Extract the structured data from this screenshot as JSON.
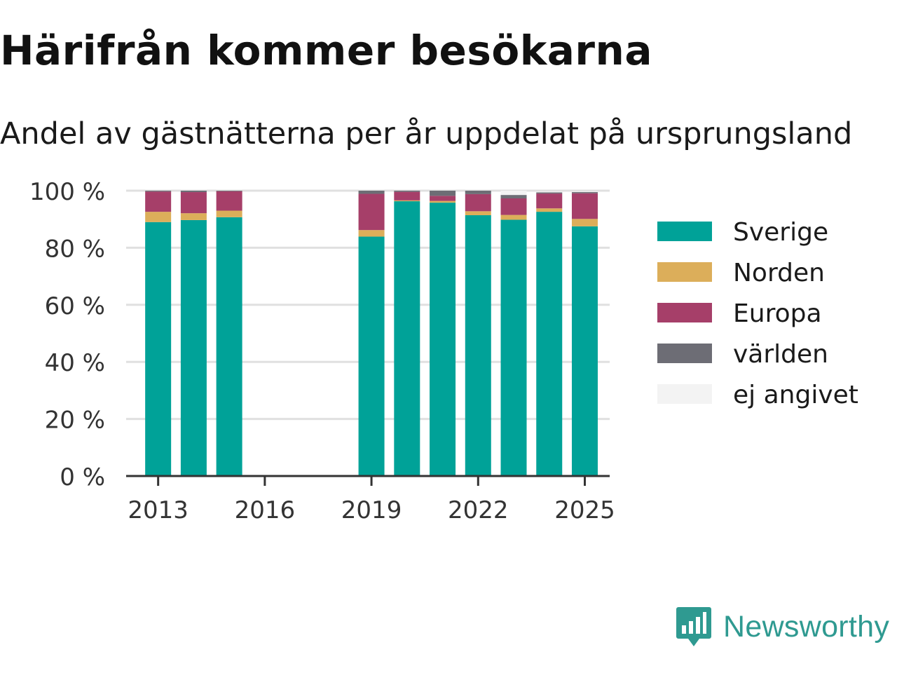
{
  "header": {
    "title": "Härifrån kommer besökarna",
    "subtitle": "Andel av gästnätterna per år uppdelat på ursprungsland"
  },
  "brand": {
    "name": "Newsworthy",
    "icon": "newsworthy-logo-icon",
    "color": "#2f9a91"
  },
  "chart_data": {
    "type": "bar",
    "stacked": true,
    "title": "",
    "xlabel": "",
    "ylabel": "",
    "x": [
      2013,
      2014,
      2015,
      2019,
      2020,
      2021,
      2022,
      2023,
      2024,
      2025
    ],
    "xlim": [
      2012.1,
      2025.7
    ],
    "xticks": [
      "2013",
      "2016",
      "2019",
      "2022",
      "2025"
    ],
    "xtick_values": [
      2013,
      2016,
      2019,
      2022,
      2025
    ],
    "ylim": [
      0,
      100
    ],
    "yticks": [
      "0 %",
      "20 %",
      "40 %",
      "60 %",
      "80 %",
      "100 %"
    ],
    "ytick_values": [
      0,
      20,
      40,
      60,
      80,
      100
    ],
    "grid": true,
    "legend_position": "right",
    "series": [
      {
        "name": "Sverige",
        "color": "#00a298",
        "values": [
          89.0,
          89.7,
          90.7,
          83.9,
          96.3,
          95.8,
          91.4,
          89.8,
          92.6,
          87.5
        ]
      },
      {
        "name": "Norden",
        "color": "#dcae5a",
        "values": [
          3.6,
          2.4,
          2.3,
          2.3,
          0.3,
          0.6,
          1.4,
          1.7,
          1.2,
          2.6
        ]
      },
      {
        "name": "Europa",
        "color": "#a63f69",
        "values": [
          7.1,
          7.4,
          6.8,
          12.7,
          3.0,
          1.8,
          6.0,
          5.8,
          5.2,
          9.0
        ]
      },
      {
        "name": "världen",
        "color": "#6d6d75",
        "values": [
          0.3,
          0.5,
          0.2,
          1.1,
          0.4,
          1.8,
          1.2,
          1.2,
          0.4,
          0.4
        ]
      },
      {
        "name": "ej angivet",
        "color": "#f3f3f3",
        "values": [
          0.0,
          0.0,
          0.0,
          0.0,
          0.0,
          0.0,
          0.0,
          1.5,
          0.0,
          0.0
        ]
      }
    ]
  }
}
